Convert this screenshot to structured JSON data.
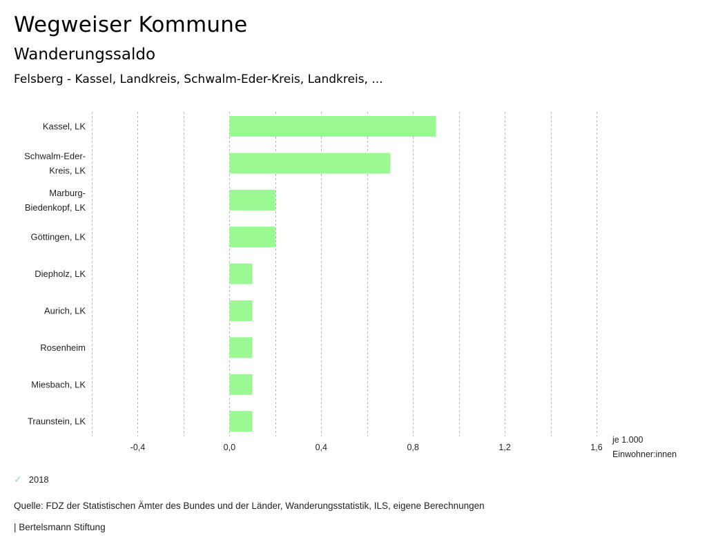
{
  "header": {
    "title": "Wegweiser Kommune",
    "subtitle": "Wanderungssaldo",
    "region": "Felsberg - Kassel, Landkreis, Schwalm-Eder-Kreis, Landkreis, ..."
  },
  "chart_data": {
    "type": "bar",
    "orientation": "horizontal",
    "title": "Wanderungssaldo",
    "categories": [
      [
        "Kassel, LK"
      ],
      [
        "Schwalm-Eder-",
        "Kreis, LK"
      ],
      [
        "Marburg-",
        "Biedenkopf, LK"
      ],
      [
        "Göttingen, LK"
      ],
      [
        "Diepholz, LK"
      ],
      [
        "Aurich, LK"
      ],
      [
        "Rosenheim"
      ],
      [
        "Miesbach, LK"
      ],
      [
        "Traunstein, LK"
      ]
    ],
    "series": [
      {
        "name": "2018",
        "color": "#9bf994",
        "values": [
          0.9,
          0.7,
          0.2,
          0.2,
          0.1,
          0.1,
          0.1,
          0.1,
          0.1
        ]
      }
    ],
    "xlim": [
      -0.6,
      1.6
    ],
    "xticks": [
      -0.4,
      0.0,
      0.4,
      0.8,
      1.2,
      1.6
    ],
    "xtick_labels": [
      "-0,4",
      "0,0",
      "0,4",
      "0,8",
      "1,2",
      "1,6"
    ],
    "gridlines": [
      -0.6,
      -0.4,
      -0.2,
      0.0,
      0.2,
      0.4,
      0.6,
      0.8,
      1.0,
      1.2,
      1.4,
      1.6
    ],
    "grid": true,
    "xlabel": [
      "je 1.000",
      "Einwohner:innen"
    ],
    "ylabel": "",
    "legend_position": "bottom-left"
  },
  "legend": {
    "items": [
      {
        "label": "2018",
        "color": "#9bf994",
        "icon": "check-icon"
      }
    ]
  },
  "footer": {
    "source": "Quelle: FDZ der Statistischen Ämter des Bundes und der Länder, Wanderungsstatistik, ILS, eigene Berechnungen",
    "credit": "| Bertelsmann Stiftung"
  }
}
